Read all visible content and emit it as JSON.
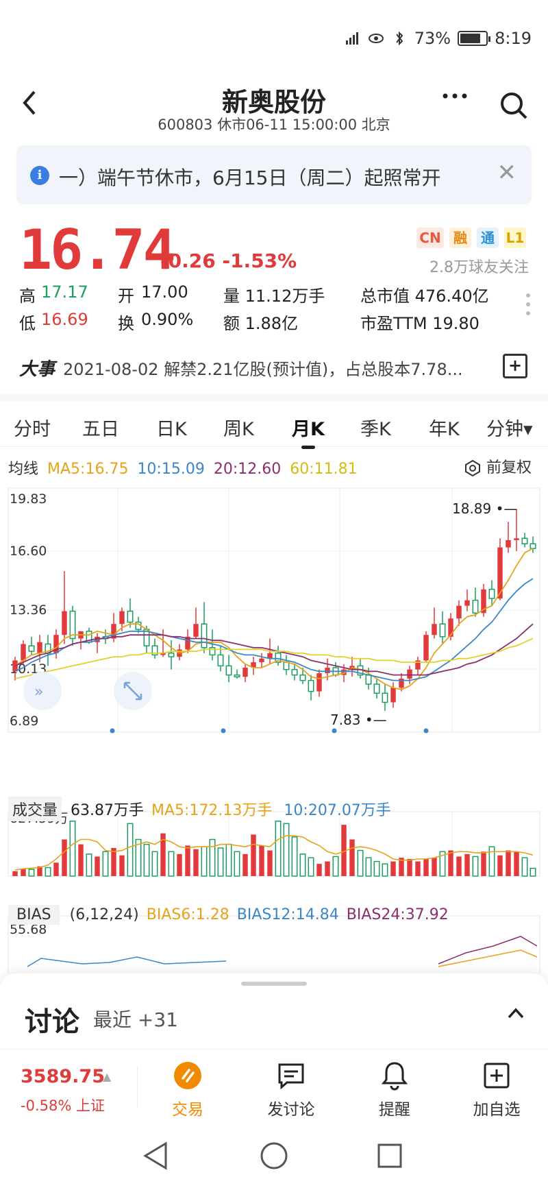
{
  "status_bar": {
    "battery": "73%",
    "time": "8:19"
  },
  "header": {
    "title": "新奥股份",
    "subtitle": "600803 休市06-11 15:00:00 北京"
  },
  "notice": {
    "text": "一）端午节休市，6月15日（周二）起照常开"
  },
  "quote": {
    "price": "16.74",
    "change": "-0.26 -1.53%",
    "badges": [
      "CN",
      "融",
      "通",
      "L1"
    ],
    "followers": "2.8万球友关注",
    "high_label": "高",
    "high": "17.17",
    "low_label": "低",
    "low": "16.69",
    "open_label": "开",
    "open": "17.00",
    "turnover_label": "换",
    "turnover": "0.90%",
    "volume": "量 11.12万手",
    "amount": "额 1.88亿",
    "mcap": "总市值 476.40亿",
    "pe": "市盈TTM 19.80"
  },
  "event": {
    "label": "大事",
    "text": "2021-08-02 解禁2.21亿股(预计值)，占总股本7.78..."
  },
  "tabs": [
    "分时",
    "五日",
    "日K",
    "周K",
    "月K",
    "季K",
    "年K",
    "分钟▾"
  ],
  "ma": {
    "label": "均线",
    "ma5": "MA5:16.75",
    "ma10": "10:15.09",
    "ma20": "20:12.60",
    "ma60": "60:11.81",
    "restore": "前复权"
  },
  "chart_data": {
    "type": "candlestick",
    "y_ticks": [
      "19.83",
      "16.60",
      "13.36",
      "10.13",
      "6.89"
    ],
    "ylim": [
      6.89,
      19.83
    ],
    "high_label": "18.89",
    "low_label": "7.83",
    "ohlc": [
      [
        10.0,
        10.8,
        9.5,
        10.6
      ],
      [
        10.6,
        11.7,
        10.4,
        11.5
      ],
      [
        11.4,
        11.9,
        10.9,
        11.1
      ],
      [
        11.0,
        12.0,
        10.5,
        11.6
      ],
      [
        11.5,
        12.0,
        10.3,
        11.0
      ],
      [
        11.0,
        12.3,
        10.7,
        12.0
      ],
      [
        12.0,
        15.5,
        11.5,
        13.3
      ],
      [
        13.3,
        13.6,
        11.4,
        11.8
      ],
      [
        11.8,
        12.2,
        11.2,
        12.2
      ],
      [
        12.2,
        12.4,
        11.5,
        11.6
      ],
      [
        11.6,
        12.1,
        11.0,
        11.9
      ],
      [
        11.9,
        12.3,
        11.5,
        11.8
      ],
      [
        11.8,
        13.2,
        11.6,
        12.6
      ],
      [
        12.6,
        13.5,
        12.2,
        13.3
      ],
      [
        13.3,
        14.0,
        12.4,
        12.7
      ],
      [
        12.7,
        13.0,
        12.1,
        12.3
      ],
      [
        12.3,
        12.5,
        11.0,
        11.4
      ],
      [
        11.4,
        11.8,
        10.7,
        10.9
      ],
      [
        10.9,
        12.3,
        10.8,
        11.0
      ],
      [
        11.0,
        11.7,
        10.1,
        10.8
      ],
      [
        10.8,
        11.5,
        10.6,
        11.2
      ],
      [
        11.2,
        12.3,
        11.0,
        11.9
      ],
      [
        11.9,
        13.5,
        11.8,
        12.6
      ],
      [
        12.6,
        13.8,
        11.0,
        11.3
      ],
      [
        11.3,
        12.3,
        10.6,
        10.9
      ],
      [
        10.9,
        11.4,
        10.0,
        10.3
      ],
      [
        10.3,
        10.9,
        9.4,
        9.8
      ],
      [
        9.8,
        10.1,
        9.6,
        9.7
      ],
      [
        9.7,
        10.4,
        9.4,
        10.2
      ],
      [
        10.2,
        10.8,
        9.8,
        10.5
      ],
      [
        10.5,
        11.0,
        10.2,
        10.7
      ],
      [
        10.7,
        11.8,
        10.4,
        11.0
      ],
      [
        11.0,
        11.4,
        10.3,
        10.5
      ],
      [
        10.5,
        10.9,
        9.8,
        10.1
      ],
      [
        10.1,
        10.4,
        9.5,
        9.8
      ],
      [
        9.8,
        10.2,
        9.3,
        9.5
      ],
      [
        9.5,
        9.8,
        8.4,
        8.9
      ],
      [
        8.9,
        10.1,
        8.6,
        9.9
      ],
      [
        9.9,
        10.7,
        9.5,
        10.2
      ],
      [
        10.2,
        10.5,
        9.7,
        9.8
      ],
      [
        9.8,
        10.4,
        9.4,
        10.1
      ],
      [
        10.1,
        10.8,
        9.7,
        10.3
      ],
      [
        10.3,
        10.7,
        9.6,
        9.8
      ],
      [
        9.8,
        10.2,
        9.0,
        9.3
      ],
      [
        9.3,
        9.6,
        8.5,
        8.8
      ],
      [
        8.8,
        9.3,
        7.83,
        8.3
      ],
      [
        8.3,
        9.4,
        8.0,
        9.1
      ],
      [
        9.1,
        9.9,
        8.9,
        9.6
      ],
      [
        9.6,
        10.3,
        9.3,
        10.1
      ],
      [
        10.1,
        10.8,
        9.8,
        10.6
      ],
      [
        10.6,
        12.2,
        10.5,
        12.0
      ],
      [
        12.0,
        13.5,
        11.8,
        12.6
      ],
      [
        12.6,
        13.3,
        11.5,
        11.9
      ],
      [
        11.9,
        13.2,
        11.7,
        12.9
      ],
      [
        12.9,
        13.9,
        12.5,
        13.6
      ],
      [
        13.6,
        14.5,
        13.3,
        13.9
      ],
      [
        13.9,
        14.6,
        13.0,
        13.2
      ],
      [
        13.2,
        14.8,
        13.0,
        14.5
      ],
      [
        14.5,
        15.0,
        13.6,
        14.0
      ],
      [
        14.0,
        17.3,
        13.9,
        16.8
      ],
      [
        16.8,
        18.2,
        16.5,
        17.2
      ],
      [
        17.2,
        18.89,
        16.6,
        17.3
      ],
      [
        17.3,
        17.6,
        16.8,
        17.0
      ],
      [
        17.0,
        17.4,
        16.5,
        16.74
      ]
    ],
    "ma_series": [
      {
        "name": "MA5",
        "color": "#e8a21a",
        "values": [
          10.3,
          10.6,
          10.9,
          11.0,
          11.1,
          11.3,
          11.8,
          12.0,
          12.0,
          12.0,
          12.2,
          12.1,
          12.0,
          12.4,
          12.6,
          12.6,
          12.3,
          12.0,
          11.7,
          11.3,
          11.0,
          11.1,
          11.5,
          11.6,
          11.6,
          11.6,
          11.3,
          10.8,
          10.4,
          10.2,
          10.2,
          10.4,
          10.6,
          10.5,
          10.4,
          10.1,
          9.7,
          9.6,
          9.7,
          9.8,
          9.9,
          10.2,
          10.1,
          9.9,
          9.6,
          9.3,
          9.1,
          9.0,
          9.2,
          9.6,
          10.2,
          11.0,
          11.5,
          12.0,
          12.6,
          13.0,
          13.1,
          13.4,
          13.6,
          14.3,
          15.0,
          15.8,
          16.5,
          16.75
        ]
      },
      {
        "name": "10",
        "color": "#3a86c8",
        "values": [
          10.0,
          10.2,
          10.5,
          10.7,
          10.9,
          11.0,
          11.3,
          11.5,
          11.6,
          11.6,
          11.7,
          11.9,
          12.0,
          12.1,
          12.2,
          12.2,
          12.2,
          12.1,
          12.0,
          11.9,
          11.8,
          11.7,
          11.6,
          11.6,
          11.5,
          11.4,
          11.2,
          11.0,
          10.9,
          10.9,
          10.8,
          10.7,
          10.7,
          10.6,
          10.5,
          10.3,
          10.1,
          10.0,
          10.0,
          10.0,
          10.0,
          10.0,
          9.9,
          9.8,
          9.7,
          9.6,
          9.5,
          9.5,
          9.5,
          9.6,
          9.7,
          10.0,
          10.3,
          10.6,
          11.0,
          11.4,
          11.8,
          12.3,
          12.7,
          13.3,
          13.9,
          14.4,
          14.8,
          15.09
        ]
      },
      {
        "name": "20",
        "color": "#8a2f6e",
        "values": [
          10.3,
          10.5,
          10.7,
          10.9,
          11.0,
          11.2,
          11.3,
          11.5,
          11.6,
          11.7,
          11.8,
          11.8,
          11.9,
          11.9,
          12.0,
          12.0,
          12.0,
          12.0,
          12.0,
          11.9,
          11.9,
          11.8,
          11.8,
          11.8,
          11.7,
          11.7,
          11.6,
          11.5,
          11.4,
          11.3,
          11.3,
          11.2,
          11.1,
          11.0,
          10.9,
          10.8,
          10.6,
          10.5,
          10.4,
          10.3,
          10.2,
          10.1,
          10.1,
          10.0,
          10.0,
          9.9,
          9.8,
          9.8,
          9.8,
          9.8,
          9.8,
          9.9,
          10.0,
          10.1,
          10.2,
          10.4,
          10.5,
          10.7,
          10.9,
          11.2,
          11.5,
          11.8,
          12.2,
          12.6
        ]
      },
      {
        "name": "60",
        "color": "#e4cf2b",
        "values": [
          9.6,
          9.7,
          9.8,
          9.9,
          10.0,
          10.1,
          10.2,
          10.3,
          10.4,
          10.5,
          10.6,
          10.7,
          10.8,
          10.8,
          10.9,
          10.9,
          11.0,
          11.0,
          11.0,
          11.1,
          11.1,
          11.1,
          11.1,
          11.2,
          11.2,
          11.2,
          11.2,
          11.2,
          11.2,
          11.2,
          11.2,
          11.1,
          11.1,
          11.1,
          11.0,
          11.0,
          10.9,
          10.9,
          10.9,
          10.8,
          10.8,
          10.7,
          10.7,
          10.7,
          10.6,
          10.6,
          10.6,
          10.5,
          10.5,
          10.5,
          10.5,
          10.5,
          10.6,
          10.6,
          10.7,
          10.7,
          10.8,
          10.9,
          11.0,
          11.1,
          11.3,
          11.4,
          11.6,
          11.81
        ]
      }
    ]
  },
  "volume": {
    "label": "成交量",
    "value": "63.87万手",
    "ma5": "MA5:172.13万手",
    "ma10": "10:207.07万手",
    "top_tick": "627.59万",
    "bars": [
      40,
      60,
      55,
      80,
      70,
      110,
      300,
      450,
      260,
      180,
      160,
      200,
      230,
      170,
      430,
      300,
      260,
      200,
      350,
      200,
      180,
      250,
      220,
      240,
      300,
      230,
      260,
      200,
      180,
      340,
      250,
      210,
      450,
      430,
      320,
      180,
      150,
      100,
      120,
      160,
      420,
      300,
      210,
      150,
      120,
      100,
      120,
      150,
      140,
      120,
      140,
      150,
      200,
      210,
      160,
      180,
      160,
      200,
      240,
      170,
      210,
      200,
      150,
      63.87
    ],
    "ma5_values": [
      50,
      60,
      65,
      70,
      90,
      140,
      200,
      260,
      300,
      300,
      280,
      210,
      200,
      210,
      240,
      260,
      280,
      260,
      300,
      280,
      240,
      230,
      240,
      240,
      240,
      260,
      260,
      250,
      240,
      260,
      250,
      240,
      300,
      330,
      330,
      320,
      280,
      250,
      200,
      180,
      200,
      230,
      240,
      230,
      210,
      180,
      140,
      130,
      130,
      140,
      140,
      150,
      170,
      190,
      200,
      200,
      190,
      190,
      200,
      200,
      200,
      200,
      190,
      172
    ]
  },
  "bias": {
    "label": "BIAS",
    "params": "(6,12,24)",
    "b6": "BIAS6:1.28",
    "b12": "BIAS12:14.84",
    "b24": "BIAS24:37.92",
    "top_tick": "55.68"
  },
  "discussion": {
    "title": "讨论",
    "subtitle": "最近 +31"
  },
  "bottom": {
    "index_value": "3589.75",
    "index_change": "-0.58% 上证",
    "trade": "交易",
    "post": "发讨论",
    "alert": "提醒",
    "add": "加自选"
  },
  "colors": {
    "up": "#e03a3a",
    "down": "#19a15f",
    "brand_orange": "#f08a00"
  }
}
